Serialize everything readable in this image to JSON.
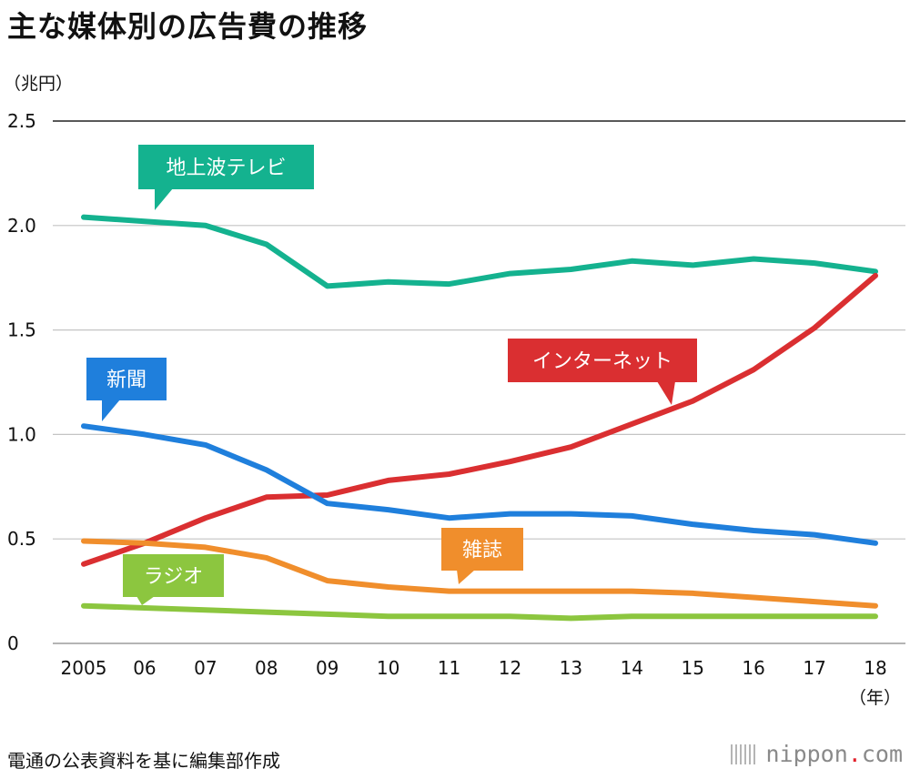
{
  "title": "主な媒体別の広告費の推移",
  "source_note": "電通の公表資料を基に編集部作成",
  "brand": {
    "name": "nippon",
    "dot": ".",
    "suffix": "com"
  },
  "chart_data": {
    "type": "line",
    "title": "主な媒体別の広告費の推移",
    "ylabel": "（兆円）",
    "xlabel": "（年）",
    "ylim": [
      0,
      2.5
    ],
    "yticks": [
      0,
      0.5,
      1.0,
      1.5,
      2.0,
      2.5
    ],
    "ytick_labels": [
      "0",
      "0.5",
      "1.0",
      "1.5",
      "2.0",
      "2.5"
    ],
    "grid": true,
    "legend": "callout labels on lines",
    "categories": [
      "2005",
      "06",
      "07",
      "08",
      "09",
      "10",
      "11",
      "12",
      "13",
      "14",
      "15",
      "16",
      "17",
      "18"
    ],
    "series": [
      {
        "name": "地上波テレビ",
        "color": "#14b28f",
        "values": [
          2.04,
          2.02,
          2.0,
          1.91,
          1.71,
          1.73,
          1.72,
          1.77,
          1.79,
          1.83,
          1.81,
          1.84,
          1.82,
          1.78
        ]
      },
      {
        "name": "インターネット",
        "color": "#da2f31",
        "values": [
          0.38,
          0.48,
          0.6,
          0.7,
          0.71,
          0.78,
          0.81,
          0.87,
          0.94,
          1.05,
          1.16,
          1.31,
          1.51,
          1.76
        ]
      },
      {
        "name": "新聞",
        "color": "#1f7fdc",
        "values": [
          1.04,
          1.0,
          0.95,
          0.83,
          0.67,
          0.64,
          0.6,
          0.62,
          0.62,
          0.61,
          0.57,
          0.54,
          0.52,
          0.48
        ]
      },
      {
        "name": "雑誌",
        "color": "#f08e2c",
        "values": [
          0.49,
          0.48,
          0.46,
          0.41,
          0.3,
          0.27,
          0.25,
          0.25,
          0.25,
          0.25,
          0.24,
          0.22,
          0.2,
          0.18
        ]
      },
      {
        "name": "ラジオ",
        "color": "#8cc63f",
        "values": [
          0.18,
          0.17,
          0.16,
          0.15,
          0.14,
          0.13,
          0.13,
          0.13,
          0.12,
          0.13,
          0.13,
          0.13,
          0.13,
          0.13
        ]
      }
    ]
  }
}
